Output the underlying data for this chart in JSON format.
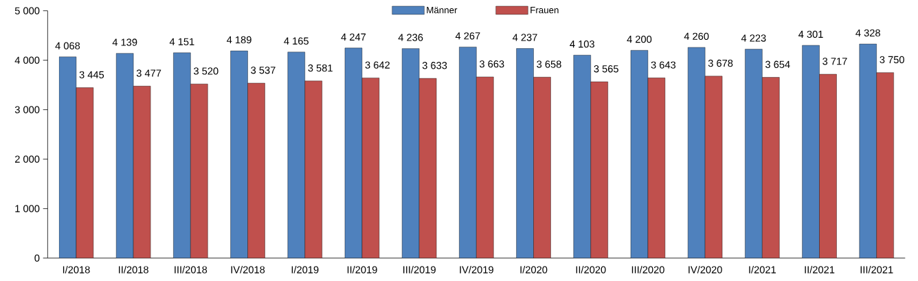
{
  "chart_data": {
    "type": "bar",
    "categories": [
      "I/2018",
      "II/2018",
      "III/2018",
      "IV/2018",
      "I/2019",
      "II/2019",
      "III/2019",
      "IV/2019",
      "I/2020",
      "II/2020",
      "III/2020",
      "IV/2020",
      "I/2021",
      "II/2021",
      "III/2021"
    ],
    "series": [
      {
        "name": "Männer",
        "color": "#4f81bd",
        "values": [
          4068,
          4139,
          4151,
          4189,
          4165,
          4247,
          4236,
          4267,
          4237,
          4103,
          4200,
          4260,
          4223,
          4301,
          4328
        ],
        "value_labels": [
          "4 068",
          "4 139",
          "4 151",
          "4 189",
          "4 165",
          "4 247",
          "4 236",
          "4 267",
          "4 237",
          "4 103",
          "4 200",
          "4 260",
          "4 223",
          "4 301",
          "4 328"
        ]
      },
      {
        "name": "Frauen",
        "color": "#c0504d",
        "values": [
          3445,
          3477,
          3520,
          3537,
          3581,
          3642,
          3633,
          3663,
          3658,
          3565,
          3643,
          3678,
          3654,
          3717,
          3750
        ],
        "value_labels": [
          "3 445",
          "3 477",
          "3 520",
          "3 537",
          "3 581",
          "3 642",
          "3 633",
          "3 663",
          "3 658",
          "3 565",
          "3 643",
          "3 678",
          "3 654",
          "3 717",
          "3 750"
        ]
      }
    ],
    "ylim": [
      0,
      5000
    ],
    "yticks": [
      0,
      {
        "value": 1000,
        "label": "1 000"
      },
      {
        "value": 2000,
        "label": "2 000"
      },
      {
        "value": 3000,
        "label": "3 000"
      },
      {
        "value": 4000,
        "label": "4 000"
      },
      {
        "value": 5000,
        "label": "5 000"
      }
    ],
    "grid": false,
    "legend": "top"
  }
}
